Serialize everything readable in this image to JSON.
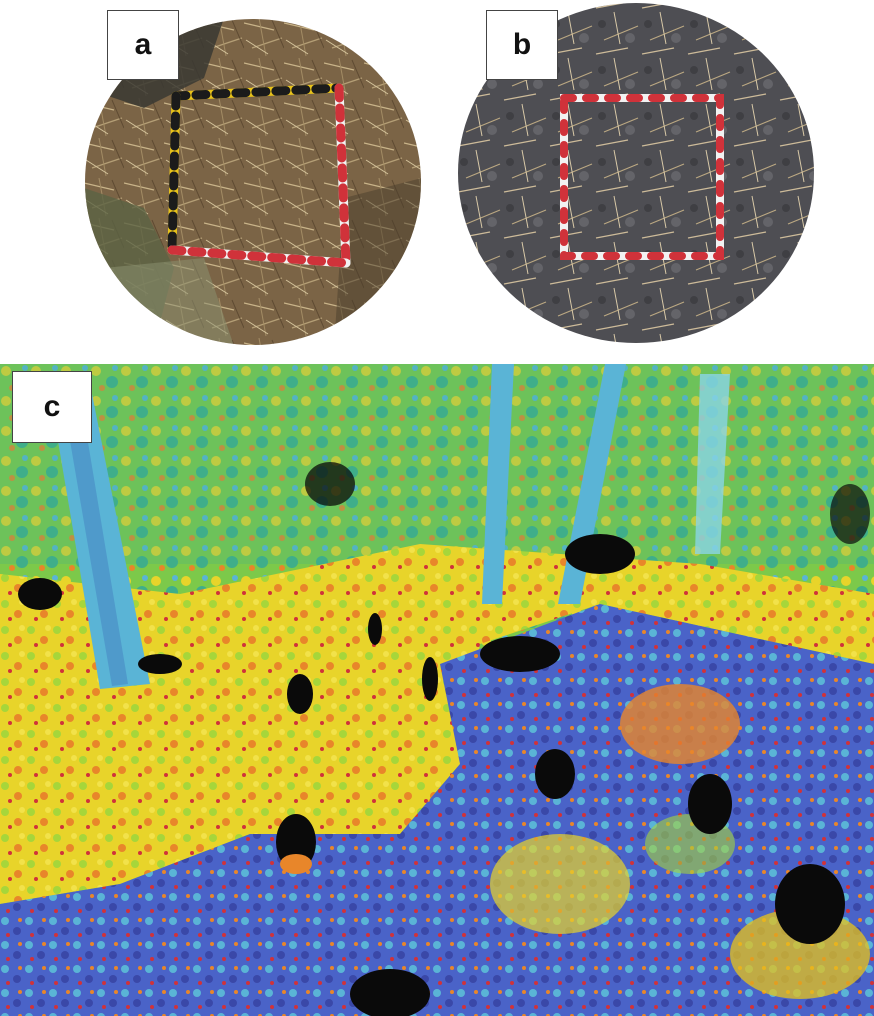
{
  "panels": [
    {
      "label": "a",
      "description_icon": "photo-plot-before-burn"
    },
    {
      "label": "b",
      "description_icon": "photo-plot-after-burn"
    },
    {
      "label": "c",
      "description_icon": "lidar-point-cloud-view"
    }
  ],
  "colors": {
    "litter_brown": "#8a7152",
    "ash_gray": "#4a4a4e",
    "frame_yellow": "#e8c31a",
    "frame_red": "#d0323a",
    "frame_white": "#f2f2f2",
    "lidar_yellow": "#e8d42a",
    "lidar_green": "#7cc94a",
    "lidar_blue": "#4a63c8",
    "lidar_cyan": "#5ab4d6",
    "lidar_orange": "#e8862a",
    "lidar_black": "#0a0a0a"
  }
}
